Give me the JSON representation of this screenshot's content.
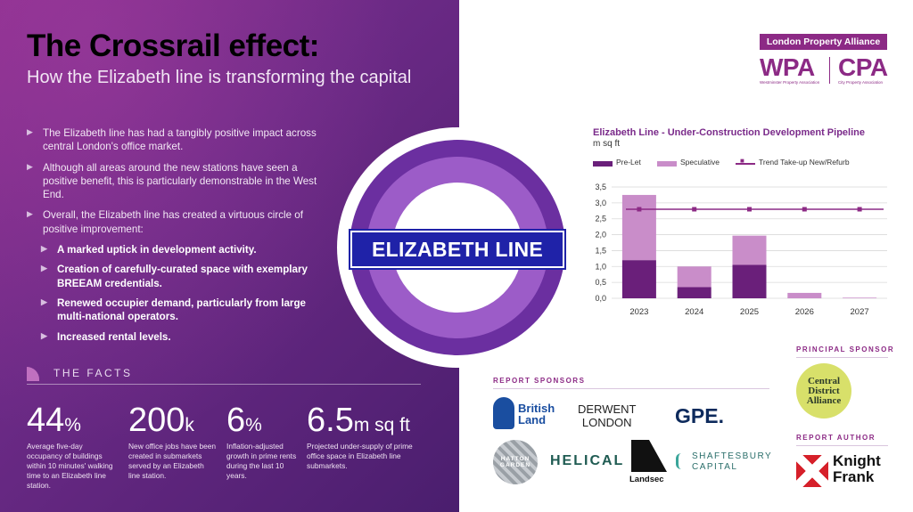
{
  "header": {
    "title": "The Crossrail effect:",
    "subtitle": "How the Elizabeth line is transforming the capital"
  },
  "bullets": [
    "The Elizabeth line has had a tangibly positive impact across central London's office market.",
    "Although all areas around the new stations have seen a positive benefit, this is particularly demonstrable in the West End.",
    "Overall, the Elizabeth line has created a virtuous circle of positive improvement:"
  ],
  "sub_bullets": [
    "A marked uptick in development activity.",
    "Creation of carefully-curated space with exemplary BREEAM credentials.",
    "Renewed occupier demand, particularly from large multi-national operators.",
    "Increased rental levels."
  ],
  "facts": {
    "label": "THE FACTS",
    "items": [
      {
        "num": "44",
        "unit": "%",
        "desc": "Average five-day occupancy of buildings within 10 minutes' walking time to an Elizabeth line station."
      },
      {
        "num": "200",
        "unit": "k",
        "desc": "New office jobs have been created in submarkets served by an Elizabeth line station."
      },
      {
        "num": "6",
        "unit": "%",
        "desc": "Inflation-adjusted growth in prime rents during the last 10 years."
      },
      {
        "num": "6.5",
        "unit": "m sq ft",
        "desc": "Projected under-supply of prime office space in Elizabeth line submarkets."
      }
    ]
  },
  "roundel": {
    "text": "ELIZABETH LINE"
  },
  "brand": {
    "lpa": "London Property Alliance",
    "wpa": "WPA",
    "cpa": "CPA",
    "wpa_sub": "Westminster Property Association",
    "cpa_sub": "City Property Association"
  },
  "chart_data": {
    "type": "bar",
    "title": "Elizabeth Line - Under-Construction Development Pipeline",
    "ylabel": "m sq ft",
    "categories": [
      "2023",
      "2024",
      "2025",
      "2026",
      "2027"
    ],
    "series": [
      {
        "name": "Pre-Let",
        "values": [
          1.2,
          0.35,
          1.05,
          0.0,
          0.0
        ],
        "color": "#6a1f7a"
      },
      {
        "name": "Speculative",
        "values": [
          2.05,
          0.65,
          0.92,
          0.17,
          0.02
        ],
        "color": "#c98dc9"
      },
      {
        "name": "Trend Take-up New/Refurb",
        "values": [
          2.8,
          2.8,
          2.8,
          2.8,
          2.8
        ],
        "color": "#8c2a85",
        "kind": "line"
      }
    ],
    "yticks": [
      "0,0",
      "0,5",
      "1,0",
      "1,5",
      "2,0",
      "2,5",
      "3,0",
      "3,5"
    ],
    "ylim": [
      0,
      3.5
    ],
    "grid": true,
    "legend": "top"
  },
  "sponsors": {
    "report_label": "REPORT SPONSORS",
    "principal_label": "PRINCIPAL SPONSOR",
    "author_label": "REPORT AUTHOR",
    "british_land": [
      "British",
      "Land"
    ],
    "derwent": [
      "DERWENT",
      "LONDON"
    ],
    "gpe": "GPE.",
    "hatton": [
      "HATTON",
      "GARDEN"
    ],
    "helical": "HELICAL",
    "landsec": "Landsec",
    "shaftesbury": [
      "SHAFTESBURY",
      "CAPITAL"
    ],
    "cda": [
      "Central",
      "District",
      "Alliance"
    ],
    "knight_frank": [
      "Knight",
      "Frank"
    ]
  }
}
